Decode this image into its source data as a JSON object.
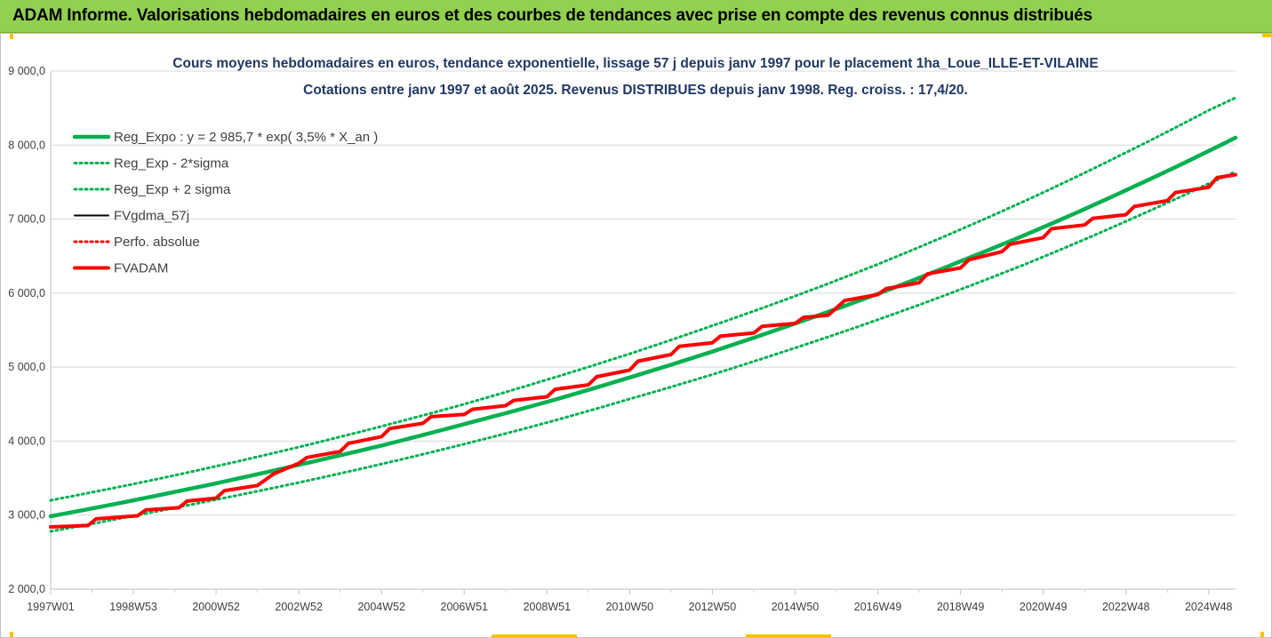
{
  "header": {
    "title": "ADAM Informe. Valorisations hebdomadaires en euros et des courbes de tendances avec prise en compte des revenus connus distribués"
  },
  "chart_data": {
    "type": "line",
    "title": "Cours moyens hebdomadaires en euros, tendance exponentielle, lissage 57 j depuis janv 1997 pour le placement 1ha_Loue_ILLE-ET-VILAINE",
    "subtitle": "Cotations entre janv 1997 et août 2025. Revenus DISTRIBUES depuis janv 1998. Reg. croiss. : 17,4/20.",
    "xlabel": "",
    "ylabel": "",
    "ylim": [
      2000,
      9000
    ],
    "xlim": [
      1997.0,
      2025.65
    ],
    "y_ticks": [
      "2 000,0",
      "3 000,0",
      "4 000,0",
      "5 000,0",
      "6 000,0",
      "7 000,0",
      "8 000,0",
      "9 000,0"
    ],
    "x_ticks": [
      {
        "label": "1997W01",
        "x": 1997.0
      },
      {
        "label": "1998W53",
        "x": 1999.0
      },
      {
        "label": "2000W52",
        "x": 2001.0
      },
      {
        "label": "2002W52",
        "x": 2003.0
      },
      {
        "label": "2004W52",
        "x": 2005.0
      },
      {
        "label": "2006W51",
        "x": 2007.0
      },
      {
        "label": "2008W51",
        "x": 2009.0
      },
      {
        "label": "2010W50",
        "x": 2011.0
      },
      {
        "label": "2012W50",
        "x": 2013.0
      },
      {
        "label": "2014W50",
        "x": 2015.0
      },
      {
        "label": "2016W49",
        "x": 2017.0
      },
      {
        "label": "2018W49",
        "x": 2019.0
      },
      {
        "label": "2020W49",
        "x": 2021.0
      },
      {
        "label": "2022W48",
        "x": 2023.0
      },
      {
        "label": "2024W48",
        "x": 2025.0
      }
    ],
    "grid": "horizontal",
    "legend_position": "top-left",
    "series": [
      {
        "name": "Reg_Expo : y = 2 985,7 * exp( 3,5% *  X_an )",
        "color": "#00b050",
        "style": "solid-thick",
        "x": [
          1997.0,
          1999.0,
          2001.0,
          2003.0,
          2005.0,
          2007.0,
          2009.0,
          2011.0,
          2013.0,
          2015.0,
          2017.0,
          2019.0,
          2021.0,
          2023.0,
          2025.0,
          2025.65
        ],
        "values": [
          2985,
          3200,
          3430,
          3680,
          3940,
          4230,
          4530,
          4860,
          5210,
          5590,
          5990,
          6430,
          6890,
          7390,
          7920,
          8100
        ]
      },
      {
        "name": "Reg_Exp - 2*sigma",
        "color": "#00b050",
        "style": "dotted",
        "x": [
          1997.0,
          1999.0,
          2001.0,
          2003.0,
          2005.0,
          2007.0,
          2009.0,
          2011.0,
          2013.0,
          2015.0,
          2017.0,
          2019.0,
          2021.0,
          2023.0,
          2025.0,
          2025.65
        ],
        "values": [
          2780,
          2990,
          3210,
          3440,
          3690,
          3960,
          4250,
          4570,
          4900,
          5260,
          5640,
          6050,
          6490,
          6970,
          7480,
          7640
        ]
      },
      {
        "name": "Reg_Exp + 2 sigma",
        "color": "#00b050",
        "style": "dotted",
        "x": [
          1997.0,
          1999.0,
          2001.0,
          2003.0,
          2005.0,
          2007.0,
          2009.0,
          2011.0,
          2013.0,
          2015.0,
          2017.0,
          2019.0,
          2021.0,
          2023.0,
          2025.0,
          2025.65
        ],
        "values": [
          3200,
          3420,
          3660,
          3920,
          4200,
          4500,
          4830,
          5180,
          5560,
          5960,
          6390,
          6860,
          7360,
          7900,
          8470,
          8640
        ]
      },
      {
        "name": "FVgdma_57j",
        "color": "#000000",
        "style": "solid",
        "x": [
          1997.0,
          1997.9,
          1998.1,
          1999.1,
          1999.3,
          2000.1,
          2000.3,
          2001.0,
          2001.2,
          2002.0,
          2002.4,
          2003.0,
          2003.2,
          2004.0,
          2004.2,
          2005.0,
          2005.2,
          2006.0,
          2006.2,
          2007.0,
          2007.2,
          2008.0,
          2008.2,
          2009.0,
          2009.2,
          2010.0,
          2010.2,
          2011.0,
          2011.2,
          2012.0,
          2012.2,
          2013.0,
          2013.2,
          2014.0,
          2014.2,
          2015.0,
          2015.2,
          2015.8,
          2016.2,
          2017.0,
          2017.2,
          2018.0,
          2018.2,
          2019.0,
          2019.2,
          2020.0,
          2020.2,
          2021.0,
          2021.2,
          2022.0,
          2022.2,
          2023.0,
          2023.2,
          2024.0,
          2024.2,
          2025.0,
          2025.2,
          2025.65
        ],
        "values": [
          2840,
          2860,
          2950,
          2990,
          3070,
          3100,
          3190,
          3230,
          3330,
          3400,
          3560,
          3700,
          3780,
          3860,
          3970,
          4060,
          4170,
          4240,
          4330,
          4360,
          4430,
          4480,
          4550,
          4600,
          4700,
          4760,
          4870,
          4960,
          5080,
          5170,
          5280,
          5330,
          5420,
          5460,
          5550,
          5590,
          5670,
          5700,
          5900,
          5980,
          6060,
          6140,
          6260,
          6340,
          6450,
          6560,
          6660,
          6750,
          6870,
          6920,
          7010,
          7060,
          7170,
          7250,
          7360,
          7430,
          7560,
          7600
        ]
      },
      {
        "name": "Perfo. absolue",
        "color": "#ff0000",
        "style": "dotted",
        "x": [
          1997.0,
          1997.9,
          1998.1,
          1999.1,
          1999.3,
          2000.1,
          2000.3,
          2001.0,
          2001.2,
          2002.0,
          2002.4,
          2003.0,
          2003.2,
          2004.0,
          2004.2,
          2005.0,
          2005.2,
          2006.0,
          2006.2,
          2007.0,
          2007.2,
          2008.0,
          2008.2,
          2009.0,
          2009.2,
          2010.0,
          2010.2,
          2011.0,
          2011.2,
          2012.0,
          2012.2,
          2013.0,
          2013.2,
          2014.0,
          2014.2,
          2015.0,
          2015.2,
          2015.8,
          2016.2,
          2017.0,
          2017.2,
          2018.0,
          2018.2,
          2019.0,
          2019.2,
          2020.0,
          2020.2,
          2021.0,
          2021.2,
          2022.0,
          2022.2,
          2023.0,
          2023.2,
          2024.0,
          2024.2,
          2025.0,
          2025.2,
          2025.65
        ],
        "values": [
          2840,
          2860,
          2950,
          2990,
          3070,
          3100,
          3190,
          3230,
          3330,
          3400,
          3560,
          3700,
          3780,
          3860,
          3970,
          4060,
          4170,
          4240,
          4330,
          4360,
          4430,
          4480,
          4550,
          4600,
          4700,
          4760,
          4870,
          4960,
          5080,
          5170,
          5280,
          5330,
          5420,
          5460,
          5550,
          5590,
          5670,
          5700,
          5900,
          5980,
          6060,
          6140,
          6260,
          6340,
          6450,
          6560,
          6660,
          6750,
          6870,
          6920,
          7010,
          7060,
          7170,
          7250,
          7360,
          7430,
          7560,
          7600
        ]
      },
      {
        "name": "FVADAM",
        "color": "#ff0000",
        "style": "solid-thick",
        "x": [
          1997.0,
          1997.9,
          1998.1,
          1999.1,
          1999.3,
          2000.1,
          2000.3,
          2001.0,
          2001.2,
          2002.0,
          2002.4,
          2003.0,
          2003.2,
          2004.0,
          2004.2,
          2005.0,
          2005.2,
          2006.0,
          2006.2,
          2007.0,
          2007.2,
          2008.0,
          2008.2,
          2009.0,
          2009.2,
          2010.0,
          2010.2,
          2011.0,
          2011.2,
          2012.0,
          2012.2,
          2013.0,
          2013.2,
          2014.0,
          2014.2,
          2015.0,
          2015.2,
          2015.8,
          2016.2,
          2017.0,
          2017.2,
          2018.0,
          2018.2,
          2019.0,
          2019.2,
          2020.0,
          2020.2,
          2021.0,
          2021.2,
          2022.0,
          2022.2,
          2023.0,
          2023.2,
          2024.0,
          2024.2,
          2025.0,
          2025.2,
          2025.65
        ],
        "values": [
          2840,
          2860,
          2950,
          2990,
          3070,
          3100,
          3190,
          3230,
          3330,
          3400,
          3560,
          3700,
          3780,
          3860,
          3970,
          4060,
          4170,
          4240,
          4330,
          4360,
          4430,
          4480,
          4550,
          4600,
          4700,
          4760,
          4870,
          4960,
          5080,
          5170,
          5280,
          5330,
          5420,
          5460,
          5550,
          5590,
          5670,
          5700,
          5900,
          5980,
          6060,
          6140,
          6260,
          6340,
          6450,
          6560,
          6660,
          6750,
          6870,
          6920,
          7010,
          7060,
          7170,
          7250,
          7360,
          7430,
          7560,
          7600
        ]
      }
    ]
  }
}
